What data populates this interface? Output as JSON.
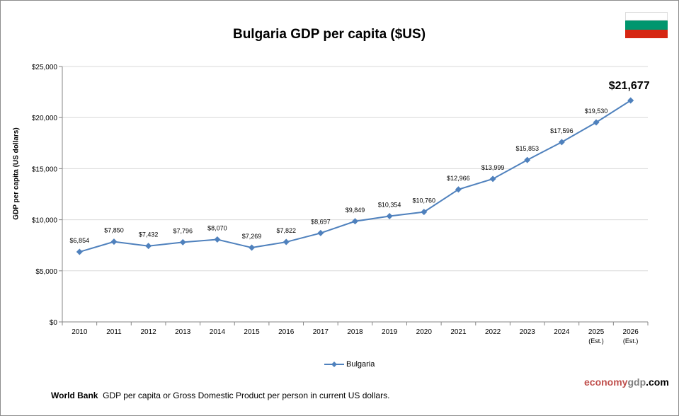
{
  "chart_data": {
    "type": "line",
    "title": "Bulgaria GDP per capita ($US)",
    "ylabel": "GDP per capita (US dollars)",
    "xlabel": "",
    "categories": [
      "2010",
      "2011",
      "2012",
      "2013",
      "2014",
      "2015",
      "2016",
      "2017",
      "2018",
      "2019",
      "2020",
      "2021",
      "2022",
      "2023",
      "2024",
      "2025",
      "2026"
    ],
    "category_sublabels": [
      "",
      "",
      "",
      "",
      "",
      "",
      "",
      "",
      "",
      "",
      "",
      "",
      "",
      "",
      "",
      "(Est.)",
      "(Est.)"
    ],
    "series": [
      {
        "name": "Bulgaria",
        "color": "#4f81bd",
        "values": [
          6854,
          7850,
          7432,
          7796,
          8070,
          7269,
          7822,
          8697,
          9849,
          10354,
          10760,
          12966,
          13999,
          15853,
          17596,
          19530,
          21677
        ],
        "data_labels": [
          "$6,854",
          "$7,850",
          "$7,432",
          "$7,796",
          "$8,070",
          "$7,269",
          "$7,822",
          "$8,697",
          "$9,849",
          "$10,354",
          "$10,760",
          "$12,966",
          "$13,999",
          "$15,853",
          "$17,596",
          "$19,530",
          "$21,677"
        ]
      }
    ],
    "ylim": [
      0,
      25000
    ],
    "yticks": [
      0,
      5000,
      10000,
      15000,
      20000,
      25000
    ],
    "ytick_labels": [
      "$0",
      "$5,000",
      "$10,000",
      "$15,000",
      "$20,000",
      "$25,000"
    ],
    "grid": "horizontal",
    "legend": "bottom"
  },
  "flag_colors": [
    "#ffffff",
    "#00966e",
    "#d62612"
  ],
  "footer": {
    "source_bold": "World Bank",
    "note": "GDP per capita or Gross Domestic Product per person in current US dollars."
  },
  "logo": {
    "part1": "economy",
    "part2": "gdp",
    "part3": ".com",
    "color1": "#c0504d",
    "color2": "#7f7f7f",
    "color3": "#000000"
  }
}
